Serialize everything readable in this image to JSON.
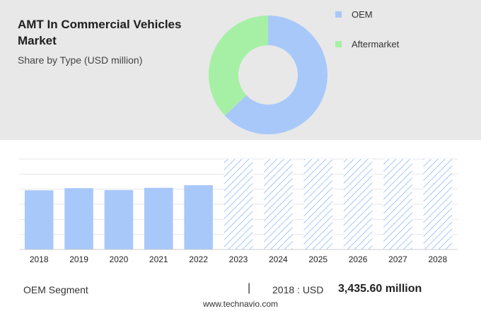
{
  "header": {
    "title": "AMT In Commercial Vehicles Market",
    "subtitle": "Share by Type (USD million)"
  },
  "donut_chart": {
    "type": "pie",
    "style": "donut",
    "slices": [
      {
        "label": "OEM",
        "value": 63,
        "color": "#a8c8fa"
      },
      {
        "label": "Aftermarket",
        "value": 37,
        "color": "#a6f0a6"
      }
    ]
  },
  "chart_data": {
    "type": "bar",
    "categories": [
      "2018",
      "2019",
      "2020",
      "2021",
      "2022",
      "2023",
      "2024",
      "2025",
      "2026",
      "2027",
      "2028"
    ],
    "values": [
      3435.6,
      3560,
      3450,
      3580,
      3730,
      null,
      null,
      null,
      null,
      null,
      null
    ],
    "forecast_years": [
      "2023",
      "2024",
      "2025",
      "2026",
      "2027",
      "2028"
    ],
    "ylim": [
      0,
      5250
    ],
    "grid": true,
    "bar_color": "#a8c8fa",
    "forecast_hatch_color": "#a8c8fa"
  },
  "footer": {
    "segment": "OEM Segment",
    "separator": "|",
    "year_label": "2018 : USD",
    "value": "3,435.60 million"
  },
  "source": "www.technavio.com"
}
